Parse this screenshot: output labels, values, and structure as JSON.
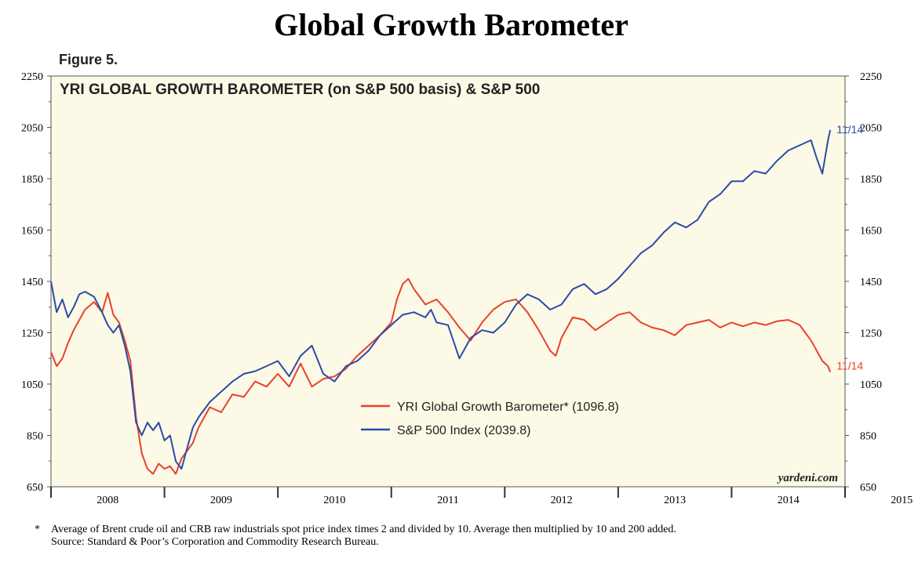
{
  "page": {
    "title": "Global Growth Barometer",
    "figure_label": "Figure 5.",
    "footnote_marker": "*",
    "footnote_line1": "Average of Brent crude oil and CRB raw industrials spot price index times 2 and divided by 10. Average then multiplied by 10 and 200 added.",
    "footnote_line2": "Source: Standard & Poor’s Corporation and Commodity Research Bureau.",
    "watermark": "yardeni.com"
  },
  "chart_data": {
    "type": "line",
    "title": "YRI GLOBAL GROWTH BAROMETER (on S&P 500 basis) & S&P 500",
    "xlabel": "",
    "ylabel": "",
    "xlim": [
      2008.0,
      2015.0
    ],
    "ylim": [
      650,
      2250
    ],
    "x_tick_labels": [
      "2008",
      "2009",
      "2010",
      "2011",
      "2012",
      "2013",
      "2014",
      "2015"
    ],
    "y_tick_labels": [
      "650",
      "850",
      "1050",
      "1250",
      "1450",
      "1650",
      "1850",
      "2050",
      "2250"
    ],
    "y_ticks": [
      650,
      850,
      1050,
      1250,
      1450,
      1650,
      1850,
      2050,
      2250
    ],
    "grid": false,
    "plot_background": "#fcf9e6",
    "legend_position": "center-bottom",
    "series": [
      {
        "name": "YRI Global Growth Barometer* (1096.8)",
        "color": "#e8412c",
        "end_label": "11/14",
        "x": [
          2008.0,
          2008.05,
          2008.1,
          2008.15,
          2008.2,
          2008.25,
          2008.3,
          2008.38,
          2008.45,
          2008.5,
          2008.55,
          2008.6,
          2008.65,
          2008.7,
          2008.75,
          2008.8,
          2008.85,
          2008.9,
          2008.95,
          2009.0,
          2009.05,
          2009.1,
          2009.15,
          2009.2,
          2009.25,
          2009.3,
          2009.4,
          2009.5,
          2009.6,
          2009.7,
          2009.8,
          2009.9,
          2010.0,
          2010.1,
          2010.2,
          2010.3,
          2010.4,
          2010.5,
          2010.6,
          2010.7,
          2010.8,
          2010.9,
          2011.0,
          2011.05,
          2011.1,
          2011.15,
          2011.2,
          2011.3,
          2011.4,
          2011.5,
          2011.6,
          2011.7,
          2011.8,
          2011.9,
          2012.0,
          2012.1,
          2012.2,
          2012.3,
          2012.4,
          2012.45,
          2012.5,
          2012.6,
          2012.7,
          2012.8,
          2012.9,
          2013.0,
          2013.1,
          2013.2,
          2013.3,
          2013.4,
          2013.5,
          2013.6,
          2013.7,
          2013.8,
          2013.9,
          2014.0,
          2014.1,
          2014.2,
          2014.3,
          2014.4,
          2014.5,
          2014.6,
          2014.7,
          2014.75,
          2014.8,
          2014.85,
          2014.87
        ],
        "values": [
          1175,
          1120,
          1150,
          1210,
          1260,
          1300,
          1340,
          1370,
          1330,
          1405,
          1320,
          1290,
          1220,
          1140,
          920,
          780,
          720,
          700,
          740,
          720,
          730,
          700,
          760,
          790,
          820,
          880,
          960,
          940,
          1010,
          1000,
          1060,
          1040,
          1090,
          1040,
          1130,
          1040,
          1070,
          1080,
          1110,
          1160,
          1200,
          1240,
          1290,
          1380,
          1440,
          1460,
          1420,
          1360,
          1380,
          1330,
          1270,
          1220,
          1290,
          1340,
          1370,
          1380,
          1330,
          1260,
          1180,
          1160,
          1230,
          1310,
          1300,
          1260,
          1290,
          1320,
          1330,
          1290,
          1270,
          1260,
          1240,
          1280,
          1290,
          1300,
          1270,
          1290,
          1275,
          1290,
          1280,
          1295,
          1300,
          1280,
          1220,
          1180,
          1140,
          1120,
          1097
        ]
      },
      {
        "name": "S&P 500 Index (2039.8)",
        "color": "#2b4ba8",
        "end_label": "11/14",
        "x": [
          2008.0,
          2008.05,
          2008.1,
          2008.15,
          2008.2,
          2008.25,
          2008.3,
          2008.38,
          2008.45,
          2008.5,
          2008.55,
          2008.6,
          2008.65,
          2008.7,
          2008.75,
          2008.8,
          2008.85,
          2008.9,
          2008.95,
          2009.0,
          2009.05,
          2009.1,
          2009.15,
          2009.2,
          2009.25,
          2009.3,
          2009.4,
          2009.5,
          2009.6,
          2009.7,
          2009.8,
          2009.9,
          2010.0,
          2010.1,
          2010.2,
          2010.3,
          2010.4,
          2010.5,
          2010.6,
          2010.7,
          2010.8,
          2010.9,
          2011.0,
          2011.1,
          2011.2,
          2011.3,
          2011.35,
          2011.4,
          2011.5,
          2011.6,
          2011.7,
          2011.8,
          2011.9,
          2012.0,
          2012.1,
          2012.2,
          2012.3,
          2012.4,
          2012.5,
          2012.6,
          2012.7,
          2012.8,
          2012.9,
          2013.0,
          2013.1,
          2013.2,
          2013.3,
          2013.4,
          2013.5,
          2013.6,
          2013.7,
          2013.8,
          2013.9,
          2014.0,
          2014.1,
          2014.2,
          2014.3,
          2014.4,
          2014.5,
          2014.6,
          2014.7,
          2014.75,
          2014.8,
          2014.85,
          2014.87
        ],
        "values": [
          1450,
          1330,
          1380,
          1310,
          1350,
          1400,
          1410,
          1390,
          1330,
          1280,
          1250,
          1280,
          1200,
          1100,
          900,
          850,
          900,
          870,
          900,
          830,
          850,
          750,
          720,
          800,
          880,
          920,
          980,
          1020,
          1060,
          1090,
          1100,
          1120,
          1140,
          1080,
          1160,
          1200,
          1090,
          1060,
          1120,
          1140,
          1180,
          1240,
          1280,
          1320,
          1330,
          1310,
          1340,
          1290,
          1280,
          1150,
          1230,
          1260,
          1250,
          1290,
          1360,
          1400,
          1380,
          1340,
          1360,
          1420,
          1440,
          1400,
          1420,
          1460,
          1510,
          1560,
          1590,
          1640,
          1680,
          1660,
          1690,
          1760,
          1790,
          1840,
          1840,
          1880,
          1870,
          1920,
          1960,
          1980,
          2000,
          1930,
          1870,
          2000,
          2040
        ]
      }
    ]
  }
}
